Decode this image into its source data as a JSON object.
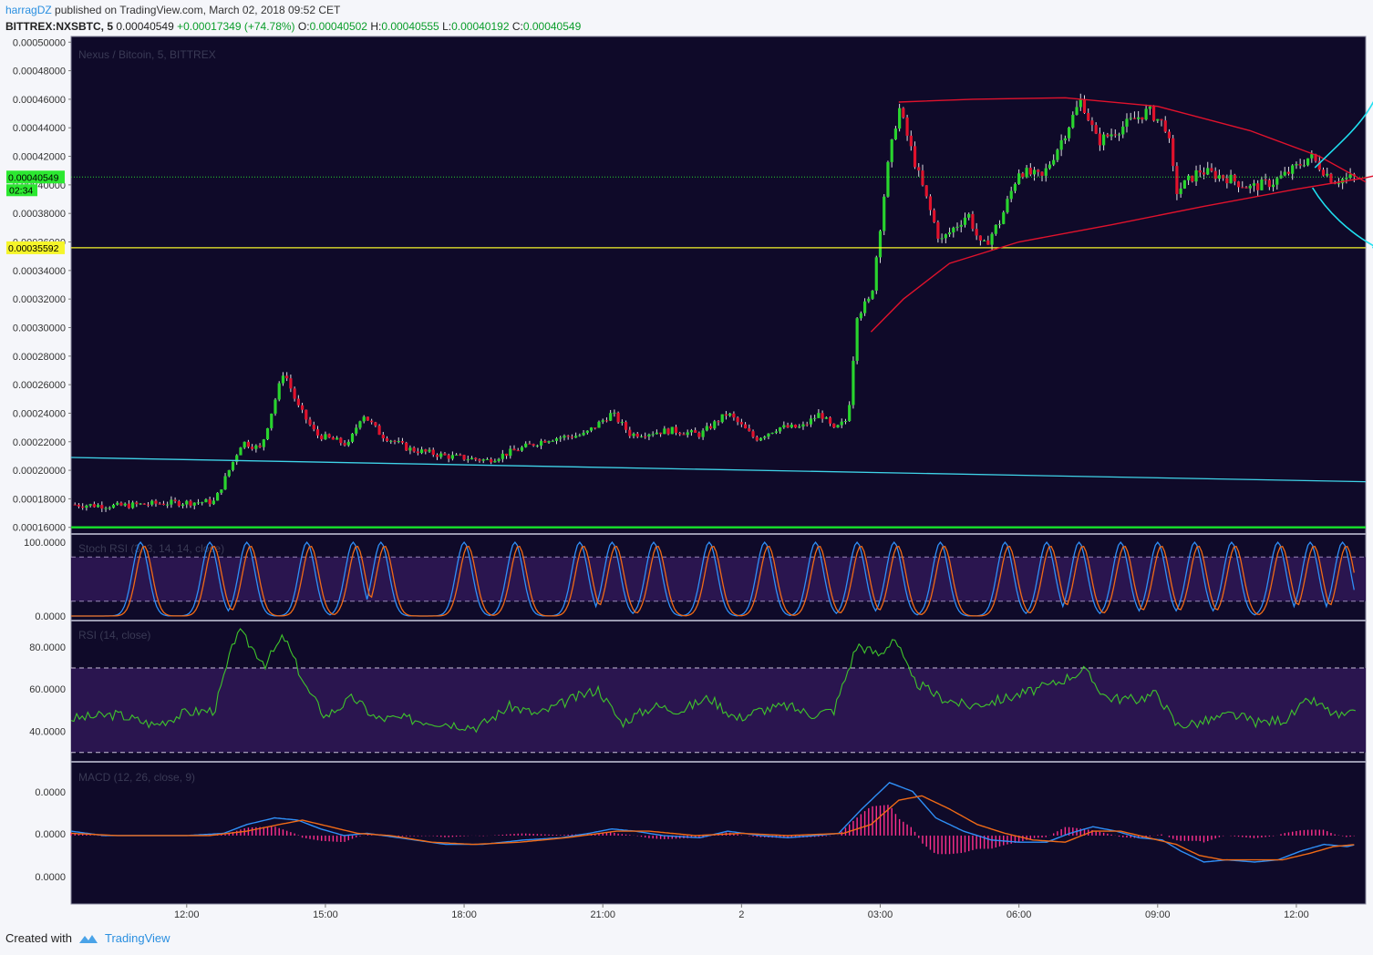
{
  "header": {
    "author": "harragDZ",
    "published_text": "published on TradingView.com, March 02, 2018 09:52 CET",
    "symbol": "BITTREX:NXSBTC, 5",
    "last": "0.00040549",
    "change": "+0.00017349 (+74.78%)",
    "open_label": "O:",
    "open": "0.00040502",
    "high_label": "H:",
    "high": "0.00040555",
    "low_label": "L:",
    "low": "0.00040192",
    "close_label": "C:",
    "close": "0.00040549"
  },
  "footer": {
    "created_with": "Created with",
    "brand": "TradingView"
  },
  "colors": {
    "background": "#0f0a29",
    "up": "#29d42e",
    "down": "#e0122c",
    "cyan_line": "#3fd3e8",
    "support_green": "#17e32b",
    "yellow_level": "#f5f52a",
    "triangle": "#e0122c",
    "arrows": "#1fe0f0",
    "macd_line": "#2f8ff7",
    "signal_line": "#f06a16",
    "histogram": "#ff2f8c",
    "rsi_line": "#3fc52b",
    "indicator_band": "#2a154f"
  },
  "chart_data": [
    {
      "type": "candlestick",
      "title": "Nexus / Bitcoin, 5, BITTREX",
      "x_ticks": [
        "12:00",
        "15:00",
        "18:00",
        "21:00",
        "2",
        "03:00",
        "06:00",
        "09:00",
        "12:00"
      ],
      "y_ticks": [
        "0.00050000",
        "0.00048000",
        "0.00046000",
        "0.00044000",
        "0.00042000",
        "0.00040000",
        "0.00038000",
        "0.00036000",
        "0.00034000",
        "0.00032000",
        "0.00030000",
        "0.00028000",
        "0.00026000",
        "0.00024000",
        "0.00022000",
        "0.00020000",
        "0.00018000",
        "0.00016000"
      ],
      "ylim": [
        0.000156,
        0.000504
      ],
      "x_range_hours": [
        9.5,
        37.5
      ],
      "price_path": [
        [
          9.5,
          0.000176
        ],
        [
          10.5,
          0.000175
        ],
        [
          11.5,
          0.000177
        ],
        [
          12.6,
          0.000178
        ],
        [
          13.2,
          0.00022
        ],
        [
          13.6,
          0.000215
        ],
        [
          14.1,
          0.00027
        ],
        [
          14.4,
          0.000245
        ],
        [
          14.8,
          0.000225
        ],
        [
          15.5,
          0.000218
        ],
        [
          15.8,
          0.00024
        ],
        [
          16.2,
          0.000225
        ],
        [
          16.8,
          0.000215
        ],
        [
          17.6,
          0.00021
        ],
        [
          18.5,
          0.000207
        ],
        [
          19.2,
          0.000215
        ],
        [
          19.8,
          0.000222
        ],
        [
          20.6,
          0.000225
        ],
        [
          21.2,
          0.00024
        ],
        [
          21.6,
          0.000225
        ],
        [
          22.5,
          0.000228
        ],
        [
          23.1,
          0.000225
        ],
        [
          23.7,
          0.00024
        ],
        [
          24.3,
          0.000222
        ],
        [
          24.8,
          0.00023
        ],
        [
          25.3,
          0.00023
        ],
        [
          25.7,
          0.00024
        ],
        [
          26.0,
          0.000228
        ],
        [
          26.3,
          0.000236
        ],
        [
          26.5,
          0.00031
        ],
        [
          26.8,
          0.00032
        ],
        [
          27.15,
          0.00041
        ],
        [
          27.4,
          0.000455
        ],
        [
          27.8,
          0.00041
        ],
        [
          28.3,
          0.00036
        ],
        [
          28.9,
          0.00038
        ],
        [
          29.2,
          0.000355
        ],
        [
          29.6,
          0.000375
        ],
        [
          30.0,
          0.00041
        ],
        [
          30.5,
          0.000405
        ],
        [
          30.9,
          0.00043
        ],
        [
          31.35,
          0.00046
        ],
        [
          31.7,
          0.00043
        ],
        [
          32.3,
          0.000442
        ],
        [
          32.8,
          0.000452
        ],
        [
          33.2,
          0.00044
        ],
        [
          33.4,
          0.000395
        ],
        [
          33.9,
          0.00041
        ],
        [
          34.5,
          0.000405
        ],
        [
          35.0,
          0.000398
        ],
        [
          35.5,
          0.000402
        ],
        [
          35.9,
          0.00041
        ],
        [
          36.3,
          0.00042
        ],
        [
          36.8,
          0.000403
        ],
        [
          37.2,
          0.000405
        ],
        [
          37.5,
          0.000405
        ]
      ],
      "price_labels": [
        {
          "value": 0.00040549,
          "text": "0.00040549",
          "countdown": "02:34"
        },
        {
          "value": 0.00035592,
          "text": "0.00035592"
        }
      ],
      "horizontal_levels": [
        {
          "kind": "resistance",
          "value": 0.00035592
        },
        {
          "kind": "support",
          "value": 0.00016
        },
        {
          "kind": "current",
          "value": 0.00040549
        }
      ],
      "trendline": {
        "from": [
          9.5,
          0.000209
        ],
        "to": [
          37.5,
          0.000192
        ]
      },
      "triangle_upper": [
        [
          27.4,
          0.000458
        ],
        [
          29.0,
          0.00046
        ],
        [
          31.0,
          0.000461
        ],
        [
          33.0,
          0.000455
        ],
        [
          35.0,
          0.000438
        ],
        [
          36.5,
          0.00042
        ],
        [
          37.5,
          0.000402
        ]
      ],
      "triangle_lower": [
        [
          26.8,
          0.000297
        ],
        [
          27.5,
          0.00032
        ],
        [
          28.5,
          0.000345
        ],
        [
          30.0,
          0.00036
        ],
        [
          32.0,
          0.000372
        ],
        [
          34.0,
          0.000385
        ],
        [
          36.0,
          0.000397
        ],
        [
          37.5,
          0.000405
        ],
        [
          38.2,
          0.00041
        ]
      ]
    },
    {
      "type": "line",
      "title": "Stoch RSI (3, 3, 14, 14, close)",
      "y_ticks": [
        "100.0000",
        "0.0000"
      ],
      "ylim": [
        -5,
        110
      ],
      "band": [
        20,
        80
      ],
      "peaks_hours": [
        11.0,
        12.5,
        13.3,
        14.6,
        15.6,
        16.2,
        18.0,
        19.1,
        20.5,
        21.2,
        22.1,
        23.3,
        24.5,
        25.6,
        26.5,
        27.3,
        28.3,
        29.7,
        30.6,
        31.3,
        32.2,
        33.0,
        33.8,
        34.6,
        35.6,
        36.3,
        37.0
      ]
    },
    {
      "type": "line",
      "title": "RSI (14, close)",
      "y_ticks": [
        "80.0000",
        "60.0000",
        "40.0000"
      ],
      "ylim": [
        26,
        92
      ],
      "band": [
        30,
        70
      ],
      "series": [
        [
          9.5,
          46
        ],
        [
          10.5,
          48
        ],
        [
          11.3,
          43
        ],
        [
          12.0,
          49
        ],
        [
          12.6,
          50
        ],
        [
          13.1,
          88
        ],
        [
          13.7,
          72
        ],
        [
          14.1,
          85
        ],
        [
          14.6,
          60
        ],
        [
          15.0,
          47
        ],
        [
          15.6,
          56
        ],
        [
          16.1,
          46
        ],
        [
          16.7,
          46
        ],
        [
          17.6,
          44
        ],
        [
          18.3,
          42
        ],
        [
          19.0,
          52
        ],
        [
          19.6,
          48
        ],
        [
          20.3,
          55
        ],
        [
          20.9,
          60
        ],
        [
          21.4,
          44
        ],
        [
          22.1,
          52
        ],
        [
          22.7,
          50
        ],
        [
          23.3,
          56
        ],
        [
          23.9,
          46
        ],
        [
          24.4,
          50
        ],
        [
          25.0,
          52
        ],
        [
          25.5,
          48
        ],
        [
          26.0,
          50
        ],
        [
          26.5,
          81
        ],
        [
          27.0,
          76
        ],
        [
          27.3,
          85
        ],
        [
          27.7,
          64
        ],
        [
          28.3,
          56
        ],
        [
          28.9,
          52
        ],
        [
          29.6,
          55
        ],
        [
          30.1,
          58
        ],
        [
          30.7,
          62
        ],
        [
          31.4,
          69
        ],
        [
          31.9,
          56
        ],
        [
          32.5,
          55
        ],
        [
          33.0,
          58
        ],
        [
          33.4,
          43
        ],
        [
          33.9,
          44
        ],
        [
          34.6,
          48
        ],
        [
          35.2,
          44
        ],
        [
          35.8,
          46
        ],
        [
          36.3,
          55
        ],
        [
          36.9,
          47
        ],
        [
          37.3,
          48
        ]
      ]
    },
    {
      "type": "line",
      "title": "MACD (12, 26, close, 9)",
      "y_ticks": [
        "0.0000",
        "0.0000",
        "0.0000"
      ],
      "ylim": [
        -3.1e-05,
        3.3e-05
      ],
      "series": [
        {
          "values": [
            [
              9.5,
              2e-06
            ],
            [
              10.2,
              0.0
            ],
            [
              12.0,
              0.0
            ],
            [
              12.8,
              1e-06
            ],
            [
              13.3,
              5e-06
            ],
            [
              13.9,
              8e-06
            ],
            [
              14.4,
              7e-06
            ],
            [
              14.9,
              3e-06
            ],
            [
              15.4,
              0.0
            ],
            [
              15.9,
              1e-06
            ],
            [
              16.6,
              -1e-06
            ],
            [
              17.6,
              -4e-06
            ],
            [
              18.4,
              -4e-06
            ],
            [
              19.3,
              -2e-06
            ],
            [
              20.1,
              -1e-06
            ],
            [
              20.7,
              1e-06
            ],
            [
              21.2,
              3e-06
            ],
            [
              21.7,
              2e-06
            ],
            [
              22.3,
              0.0
            ],
            [
              23.1,
              -1e-06
            ],
            [
              23.7,
              2e-06
            ],
            [
              24.4,
              0.0
            ],
            [
              25.0,
              -1e-06
            ],
            [
              25.6,
              0.0
            ],
            [
              26.1,
              1e-06
            ],
            [
              26.6,
              1.2e-05
            ],
            [
              27.2,
              2.4e-05
            ],
            [
              27.7,
              2e-05
            ],
            [
              28.2,
              8e-06
            ],
            [
              28.8,
              2e-06
            ],
            [
              29.4,
              -2e-06
            ],
            [
              30.0,
              -3e-06
            ],
            [
              30.6,
              -3e-06
            ],
            [
              31.1,
              1e-06
            ],
            [
              31.6,
              4e-06
            ],
            [
              32.1,
              2e-06
            ],
            [
              32.6,
              -1e-06
            ],
            [
              33.1,
              -2e-06
            ],
            [
              33.5,
              -7e-06
            ],
            [
              34.0,
              -1.2e-05
            ],
            [
              34.5,
              -1.1e-05
            ],
            [
              35.1,
              -1.2e-05
            ],
            [
              35.6,
              -1.1e-05
            ],
            [
              36.1,
              -7e-06
            ],
            [
              36.6,
              -4e-06
            ],
            [
              37.1,
              -5e-06
            ],
            [
              37.3,
              -4e-06
            ]
          ]
        },
        {
          "values": [
            [
              9.5,
              1e-06
            ],
            [
              10.5,
              0.0
            ],
            [
              12.5,
              0.0
            ],
            [
              13.3,
              2e-06
            ],
            [
              14.0,
              5e-06
            ],
            [
              14.5,
              7e-06
            ],
            [
              15.1,
              4e-06
            ],
            [
              15.7,
              1e-06
            ],
            [
              16.4,
              0.0
            ],
            [
              17.3,
              -3e-06
            ],
            [
              18.2,
              -4e-06
            ],
            [
              19.2,
              -3e-06
            ],
            [
              20.2,
              -1e-06
            ],
            [
              21.3,
              2e-06
            ],
            [
              22.0,
              2e-06
            ],
            [
              23.0,
              0.0
            ],
            [
              24.0,
              1e-06
            ],
            [
              25.0,
              0.0
            ],
            [
              26.2,
              1e-06
            ],
            [
              26.8,
              5e-06
            ],
            [
              27.4,
              1.6e-05
            ],
            [
              27.9,
              1.8e-05
            ],
            [
              28.5,
              1.2e-05
            ],
            [
              29.1,
              5e-06
            ],
            [
              29.7,
              1e-06
            ],
            [
              30.3,
              -2e-06
            ],
            [
              31.0,
              -3e-06
            ],
            [
              31.6,
              2e-06
            ],
            [
              32.2,
              2e-06
            ],
            [
              32.8,
              -1e-06
            ],
            [
              33.4,
              -4e-06
            ],
            [
              33.9,
              -9e-06
            ],
            [
              34.4,
              -1.1e-05
            ],
            [
              35.0,
              -1.1e-05
            ],
            [
              35.7,
              -1.1e-05
            ],
            [
              36.3,
              -8e-06
            ],
            [
              36.8,
              -5e-06
            ],
            [
              37.3,
              -4e-06
            ]
          ]
        }
      ]
    }
  ]
}
